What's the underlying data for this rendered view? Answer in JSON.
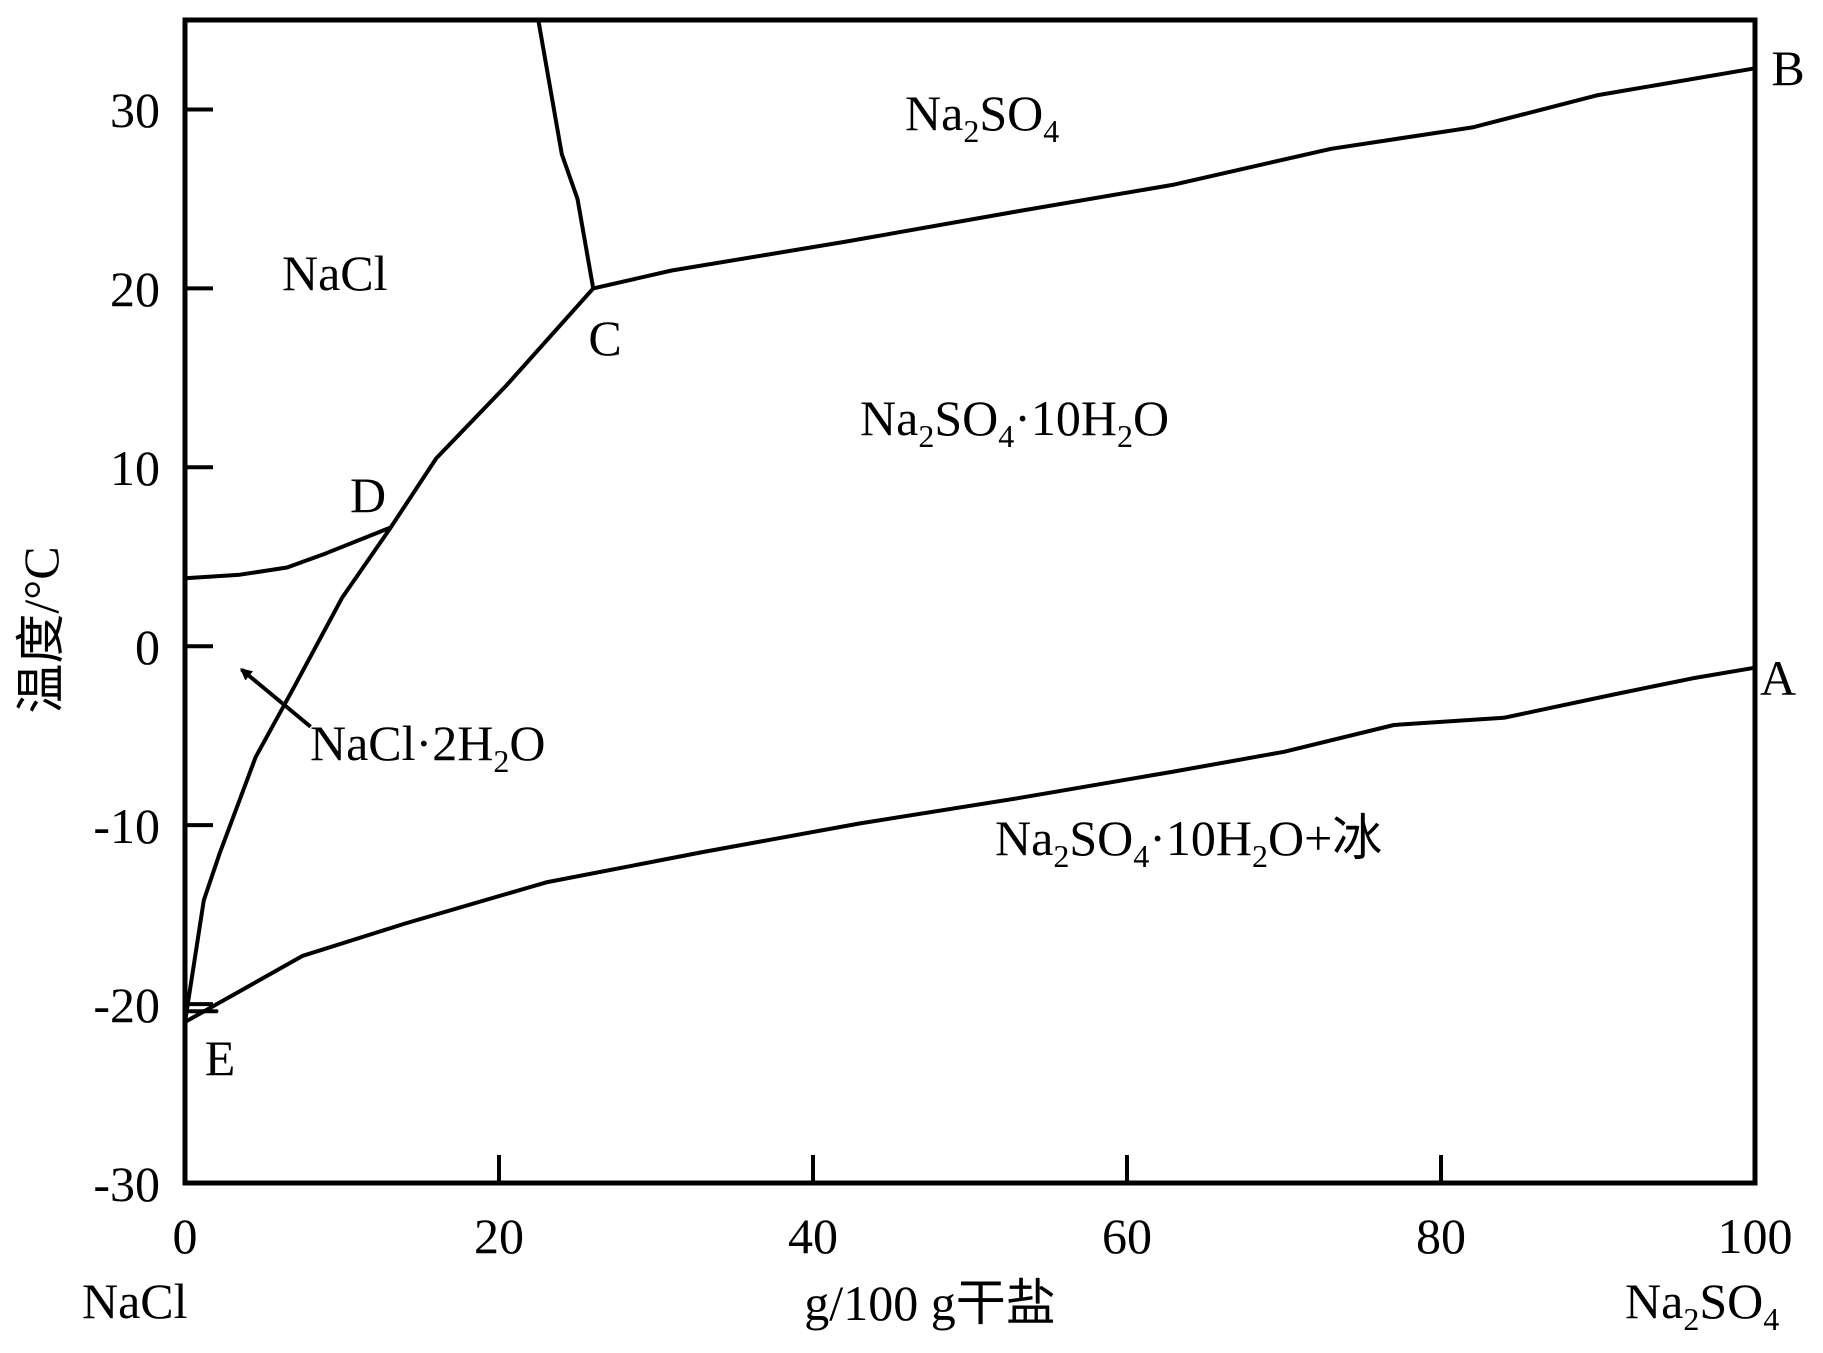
{
  "chart_data": {
    "type": "line",
    "xlabel": "g/100 g干盐",
    "ylabel": "温度/°C",
    "xlim": [
      0,
      100
    ],
    "ylim": [
      -30,
      35
    ],
    "x_ticks": [
      "0",
      "20",
      "40",
      "60",
      "80",
      "100"
    ],
    "y_ticks": [
      "-30",
      "-20",
      "-10",
      "0",
      "10",
      "20",
      "30"
    ],
    "x_end_labels": {
      "left": "NaCl",
      "right_main": "Na",
      "right_sub1": "2",
      "right_main2": "SO",
      "right_sub2": "4"
    },
    "point_labels": {
      "A": "A",
      "B": "B",
      "C": "C",
      "D": "D",
      "E": "E"
    },
    "regions": {
      "nacl": "NaCl",
      "na2so4": {
        "p1": "Na",
        "s1": "2",
        "p2": "SO",
        "s2": "4"
      },
      "decahydrate": {
        "p1": "Na",
        "s1": "2",
        "p2": "SO",
        "s2": "4",
        "p3": "·10H",
        "s3": "2",
        "p4": "O"
      },
      "decahydrate_ice": {
        "p1": "Na",
        "s1": "2",
        "p2": "SO",
        "s2": "4",
        "p3": "·10H",
        "s3": "2",
        "p4": "O+冰"
      },
      "dihydrate": {
        "p1": "NaCl·2H",
        "s1": "2",
        "p2": "O"
      }
    },
    "series": [
      {
        "values": [
          [
            0,
            -21
          ],
          [
            7.5,
            -17.3
          ],
          [
            14,
            -15.5
          ],
          [
            23,
            -13.2
          ],
          [
            33,
            -11.5
          ],
          [
            43,
            -9.9
          ],
          [
            53,
            -8.5
          ],
          [
            63,
            -7
          ],
          [
            70,
            -5.9
          ],
          [
            77,
            -4.4
          ],
          [
            84,
            -4
          ],
          [
            91,
            -2.7
          ],
          [
            96,
            -1.8
          ],
          [
            100,
            -1.2
          ]
        ]
      },
      {
        "values": [
          [
            0,
            -21
          ],
          [
            1.2,
            -14.2
          ],
          [
            2.2,
            -11.6
          ],
          [
            4.5,
            -6.2
          ],
          [
            7,
            -2.2
          ],
          [
            10,
            2.7
          ],
          [
            13,
            6.5
          ],
          [
            16,
            10.5
          ],
          [
            20.5,
            14.6
          ],
          [
            26,
            20
          ],
          [
            31,
            21
          ],
          [
            42,
            22.6
          ],
          [
            53,
            24.3
          ],
          [
            63,
            25.8
          ],
          [
            68,
            26.8
          ],
          [
            73,
            27.8
          ],
          [
            82,
            29
          ],
          [
            90,
            30.8
          ],
          [
            100,
            32.3
          ]
        ]
      },
      {
        "values": [
          [
            0,
            3.8
          ],
          [
            3.5,
            4
          ],
          [
            6.5,
            4.4
          ],
          [
            9,
            5.2
          ],
          [
            13,
            6.6
          ]
        ]
      },
      {
        "values": [
          [
            26,
            20
          ],
          [
            25,
            25
          ],
          [
            24,
            27.5
          ],
          [
            22.5,
            35
          ]
        ]
      },
      {
        "values": [
          [
            0,
            -20.4
          ],
          [
            2,
            -20.4
          ]
        ]
      }
    ],
    "points": {
      "A": [
        100,
        -1.2
      ],
      "B": [
        100,
        32.3
      ],
      "C": [
        26,
        20
      ],
      "D": [
        13,
        6.6
      ],
      "E": [
        0,
        -21
      ]
    },
    "annotation_arrow": {
      "from": [
        8,
        -4.5
      ],
      "to": [
        3.6,
        -1.3
      ]
    }
  }
}
